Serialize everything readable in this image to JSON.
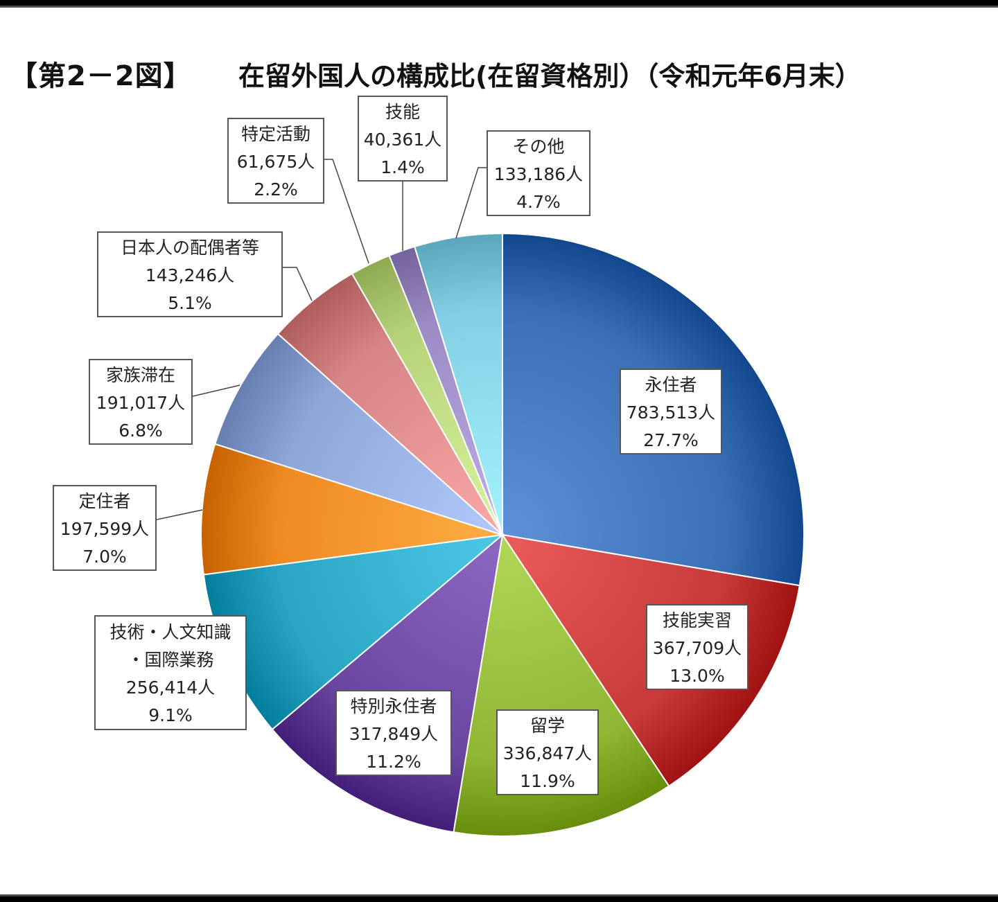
{
  "header": {
    "figure_number": "【第2－2図】",
    "title": "在留外国人の構成比(在留資格別）（令和元年6月末）"
  },
  "chart_data": {
    "type": "pie",
    "title": "在留外国人の構成比(在留資格別）（令和元年6月末）",
    "slices": [
      {
        "name": "永住者",
        "value": 783513,
        "value_text": "783,513人",
        "percent_text": "27.7%",
        "color": "#3a6fb5"
      },
      {
        "name": "技能実習",
        "value": 367709,
        "value_text": "367,709人",
        "percent_text": "13.0%",
        "color": "#c8393a"
      },
      {
        "name": "留学",
        "value": 336847,
        "value_text": "336,847人",
        "percent_text": "11.9%",
        "color": "#8fb534"
      },
      {
        "name": "特別永住者",
        "value": 317849,
        "value_text": "317,849人",
        "percent_text": "11.2%",
        "color": "#6a46a0"
      },
      {
        "name": "技術・人文知識・国際業務",
        "label_lines": [
          "技術・人文知識",
          "・国際業務"
        ],
        "value": 256414,
        "value_text": "256,414人",
        "percent_text": "9.1%",
        "color": "#2aa5c4"
      },
      {
        "name": "定住者",
        "value": 197599,
        "value_text": "197,599人",
        "percent_text": "7.0%",
        "color": "#ee8a22"
      },
      {
        "name": "家族滞在",
        "value": 191017,
        "value_text": "191,017人",
        "percent_text": "6.8%",
        "color": "#8fa6d8"
      },
      {
        "name": "日本人の配偶者等",
        "value": 143246,
        "value_text": "143,246人",
        "percent_text": "5.1%",
        "color": "#d68584"
      },
      {
        "name": "特定活動",
        "value": 61675,
        "value_text": "61,675人",
        "percent_text": "2.2%",
        "color": "#b5d27a"
      },
      {
        "name": "技能",
        "value": 40361,
        "value_text": "40,361人",
        "percent_text": "1.4%",
        "color": "#9c8ac4"
      },
      {
        "name": "その他",
        "value": 133186,
        "value_text": "133,186人",
        "percent_text": "4.7%",
        "color": "#82cfe3"
      }
    ],
    "start_angle": "12 o'clock, clockwise",
    "legend": "none (callout labels)"
  }
}
